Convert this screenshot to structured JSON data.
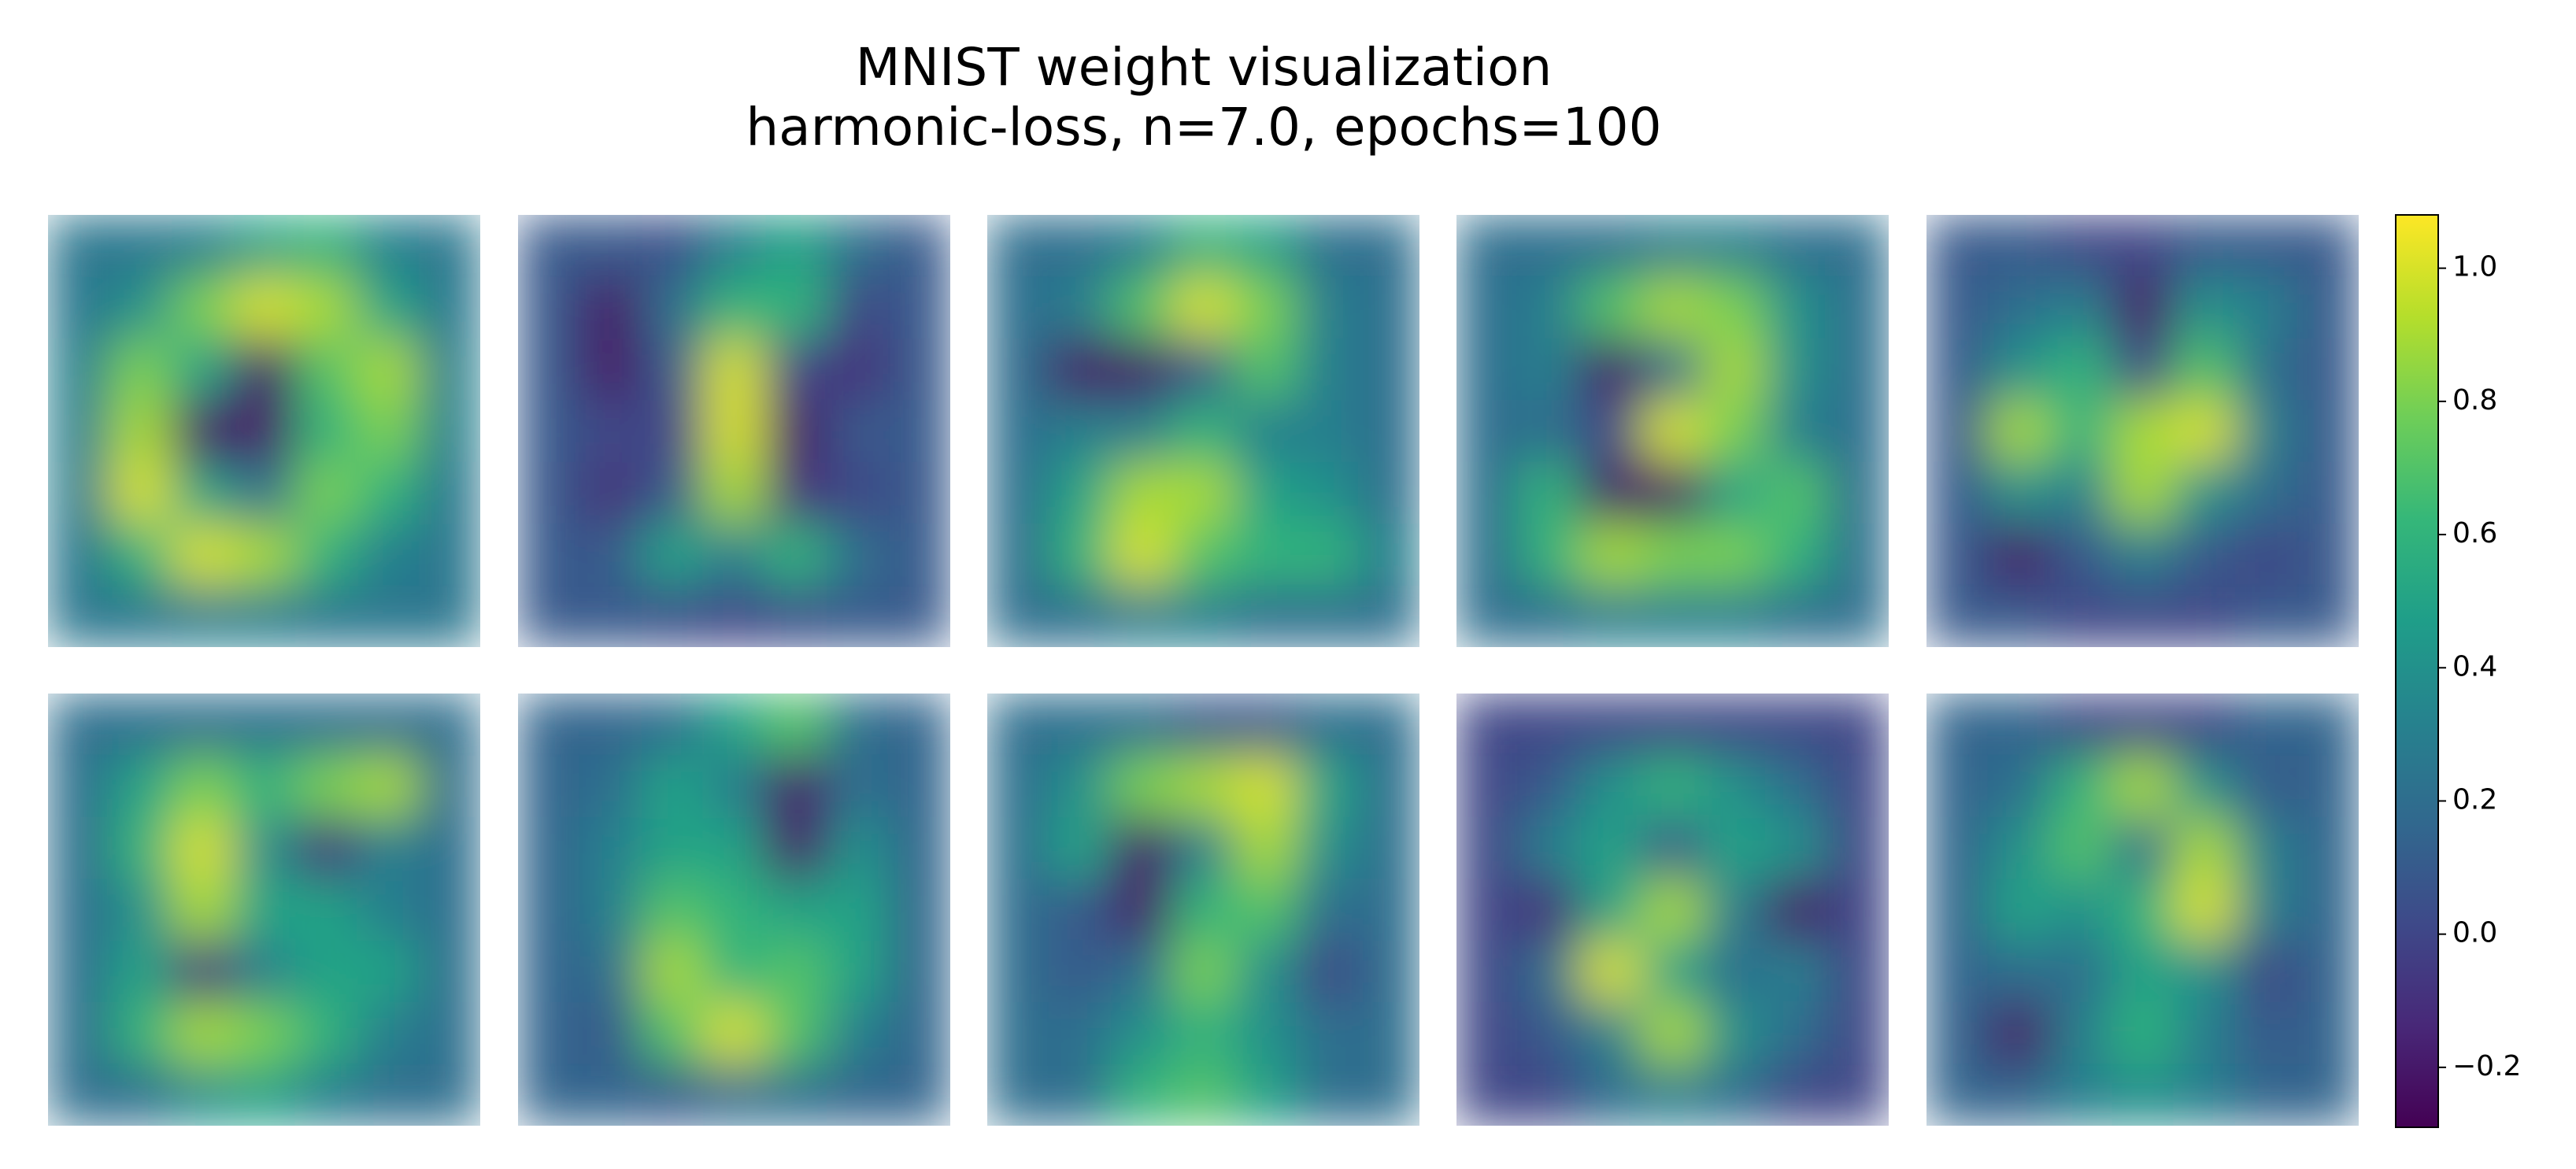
{
  "chart_data": {
    "type": "heatmap",
    "title": "MNIST weight visualization",
    "subtitle": "harmonic-loss, n=7.0, epochs=100",
    "cmap": "viridis",
    "clim": [
      -0.29,
      1.08
    ],
    "cticks": [
      {
        "value": -0.2,
        "label": "−0.2"
      },
      {
        "value": 0,
        "label": "0.0"
      },
      0.2,
      0.4,
      0.6,
      0.8,
      {
        "value": 1.0,
        "label": "1.0"
      }
    ],
    "panels": [
      [
        [
          0.25,
          0.25,
          0.3,
          0.5,
          0.6,
          0.3,
          0.25
        ],
        [
          0.25,
          0.4,
          0.8,
          1.0,
          0.9,
          0.5,
          0.25
        ],
        [
          0.3,
          0.8,
          0.5,
          -0.2,
          0.7,
          0.9,
          0.3
        ],
        [
          0.3,
          0.9,
          -0.2,
          -0.2,
          0.6,
          0.8,
          0.3
        ],
        [
          0.3,
          1.0,
          0.5,
          0.2,
          0.8,
          0.6,
          0.25
        ],
        [
          0.25,
          0.6,
          1.0,
          0.9,
          0.6,
          0.3,
          0.25
        ],
        [
          0.25,
          0.25,
          0.3,
          0.3,
          0.25,
          0.25,
          0.25
        ]
      ],
      [
        [
          0.1,
          0.1,
          0.05,
          0.3,
          0.5,
          0.2,
          0.1
        ],
        [
          0.1,
          -0.2,
          0.2,
          0.6,
          0.6,
          0,
          0.1
        ],
        [
          0.1,
          -0.2,
          0.1,
          1.0,
          0,
          -0.1,
          0.1
        ],
        [
          0.1,
          0,
          0,
          1.0,
          -0.2,
          0.1,
          0.1
        ],
        [
          0.1,
          -0.1,
          0.1,
          0.9,
          -0.1,
          0,
          0.1
        ],
        [
          0.1,
          0.1,
          0.5,
          0.3,
          0.6,
          0.2,
          0.1
        ],
        [
          0.1,
          0.1,
          0.05,
          0,
          0.05,
          0.1,
          0.1
        ]
      ],
      [
        [
          0.2,
          0.2,
          0.3,
          0.6,
          0.5,
          0.2,
          0.2
        ],
        [
          0.2,
          0.3,
          0.7,
          1.0,
          0.8,
          0.3,
          0.2
        ],
        [
          0.2,
          -0.2,
          -0.2,
          0.1,
          0.7,
          0.3,
          0.2
        ],
        [
          0.2,
          0.3,
          0.3,
          0.6,
          0.3,
          0.3,
          0.2
        ],
        [
          0.2,
          0.5,
          0.9,
          0.9,
          0.5,
          0.4,
          0.2
        ],
        [
          0.2,
          0.6,
          1.0,
          0.7,
          0.6,
          0.6,
          0.3
        ],
        [
          0.2,
          0.2,
          0.3,
          0.3,
          0.2,
          0.2,
          0.2
        ]
      ],
      [
        [
          0.2,
          0.2,
          0.2,
          0.3,
          0.3,
          0.2,
          0.2
        ],
        [
          0.2,
          0.3,
          0.7,
          0.9,
          0.8,
          0.4,
          0.2
        ],
        [
          0.2,
          0.3,
          -0.2,
          0.2,
          0.9,
          0.4,
          0.2
        ],
        [
          0.2,
          0.2,
          0,
          1.0,
          0.8,
          0.3,
          0.2
        ],
        [
          0.2,
          0.6,
          -0.2,
          -0.2,
          0.5,
          0.7,
          0.2
        ],
        [
          0.2,
          0.6,
          0.9,
          0.8,
          0.8,
          0.6,
          0.2
        ],
        [
          0.2,
          0.2,
          0.3,
          0.3,
          0.3,
          0.2,
          0.2
        ]
      ],
      [
        [
          0.1,
          0.1,
          0,
          0,
          0.1,
          0.1,
          0.1
        ],
        [
          0.1,
          0.2,
          0.3,
          -0.2,
          0.4,
          0.3,
          0.1
        ],
        [
          0.1,
          0.4,
          0.6,
          0,
          0.7,
          0.2,
          0.1
        ],
        [
          0.1,
          0.9,
          0.6,
          0.9,
          1.0,
          0.3,
          0.1
        ],
        [
          0.1,
          0.4,
          0.3,
          0.9,
          0.4,
          0.2,
          0.1
        ],
        [
          0.1,
          -0.2,
          0.1,
          0.3,
          0.1,
          0,
          0.1
        ],
        [
          0.1,
          0.1,
          0,
          0,
          0,
          0.1,
          0.1
        ]
      ],
      [
        [
          0.2,
          0.2,
          0.2,
          0.2,
          0.2,
          0.2,
          0.2
        ],
        [
          0.2,
          0.5,
          0.8,
          0.6,
          0.8,
          0.9,
          0.2
        ],
        [
          0.2,
          0.6,
          1.0,
          0.4,
          -0.1,
          0.3,
          0.2
        ],
        [
          0.2,
          0.4,
          0.9,
          0.5,
          0.5,
          0.3,
          0.2
        ],
        [
          0.2,
          0.5,
          -0.1,
          0.3,
          0.5,
          0.5,
          0.2
        ],
        [
          0.2,
          0.6,
          0.9,
          0.8,
          0.6,
          0.3,
          0.2
        ],
        [
          0.2,
          0.2,
          0.4,
          0.5,
          0.3,
          0.2,
          0.2
        ]
      ],
      [
        [
          0.15,
          0.15,
          0.2,
          0.5,
          0.7,
          0.2,
          0.15
        ],
        [
          0.15,
          0.2,
          0.5,
          0.3,
          -0.2,
          0.2,
          0.15
        ],
        [
          0.15,
          0.3,
          0.5,
          0.5,
          -0.2,
          0.4,
          0.15
        ],
        [
          0.15,
          0.3,
          0.7,
          0.6,
          0.5,
          0.5,
          0.15
        ],
        [
          0.15,
          0.2,
          0.9,
          0.6,
          0.7,
          0.5,
          0.15
        ],
        [
          0.15,
          0.1,
          0.7,
          1.0,
          0.7,
          0.3,
          0.15
        ],
        [
          0.15,
          0.15,
          0.1,
          0.2,
          0.2,
          0.15,
          0.15
        ]
      ],
      [
        [
          0.2,
          0.2,
          0.2,
          0.1,
          0.1,
          0.2,
          0.2
        ],
        [
          0.2,
          0.4,
          0.8,
          0.9,
          1.0,
          0.5,
          0.2
        ],
        [
          0.2,
          0.5,
          -0.2,
          0.3,
          0.9,
          0.4,
          0.2
        ],
        [
          0.2,
          0.1,
          -0.2,
          0.6,
          0.7,
          0.2,
          0.2
        ],
        [
          0.2,
          0.1,
          0.2,
          0.8,
          0.4,
          0,
          0.2
        ],
        [
          0.2,
          0.2,
          0.4,
          0.6,
          0.4,
          0.2,
          0.2
        ],
        [
          0.2,
          0.2,
          0.6,
          0.7,
          0.5,
          0.2,
          0.2
        ]
      ],
      [
        [
          0,
          0,
          0,
          0,
          0,
          0,
          0
        ],
        [
          0,
          0.1,
          0.4,
          0.6,
          0.4,
          0.2,
          0
        ],
        [
          0,
          0.3,
          0.5,
          0.1,
          0.5,
          0.4,
          0
        ],
        [
          0,
          -0.1,
          0.5,
          0.9,
          0.3,
          -0.2,
          0
        ],
        [
          0,
          0.2,
          1.0,
          0.5,
          0.2,
          0.3,
          0
        ],
        [
          0,
          0.1,
          0.3,
          0.9,
          0.4,
          0.2,
          0
        ],
        [
          0,
          0,
          0.2,
          0.3,
          0.2,
          0,
          0
        ]
      ],
      [
        [
          0.15,
          0.15,
          0,
          0,
          0,
          0.15,
          0.15
        ],
        [
          0.15,
          0.2,
          0.6,
          0.9,
          0.4,
          0.1,
          0.15
        ],
        [
          0.15,
          0.4,
          0.7,
          0.2,
          0.9,
          0.3,
          0.15
        ],
        [
          0.15,
          0.5,
          0.4,
          0.6,
          1.0,
          0.3,
          0.15
        ],
        [
          0.15,
          0.2,
          0.2,
          0.5,
          0.4,
          0,
          0.15
        ],
        [
          0.15,
          -0.2,
          0.3,
          0.6,
          0.3,
          0.1,
          0.15
        ],
        [
          0.15,
          0.15,
          0.3,
          0.4,
          0.3,
          0.15,
          0.15
        ]
      ]
    ]
  }
}
